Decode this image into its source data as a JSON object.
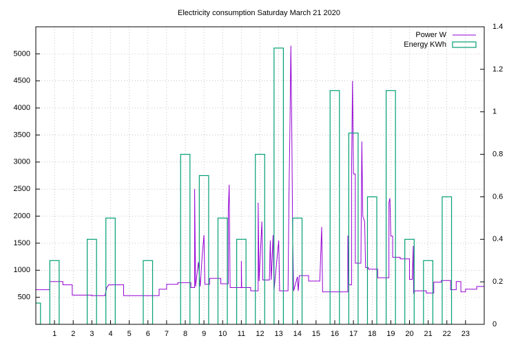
{
  "chart_data": {
    "type": "line",
    "title": "Electricity consumption Saturday March 21 2020",
    "xlim": [
      0,
      24
    ],
    "xticks": [
      1,
      2,
      3,
      4,
      5,
      6,
      7,
      8,
      9,
      10,
      11,
      12,
      13,
      14,
      15,
      16,
      17,
      18,
      19,
      20,
      21,
      22,
      23
    ],
    "ylim": [
      0,
      5500
    ],
    "yticks": [
      500,
      1000,
      1500,
      2000,
      2500,
      3000,
      3500,
      4000,
      4500,
      5000
    ],
    "y2lim": [
      0,
      1.4
    ],
    "y2ticks": [
      0,
      0.2,
      0.4,
      0.6,
      0.8,
      1,
      1.2,
      1.4
    ],
    "grid": true,
    "legend": "top-right",
    "box_width": 0.5,
    "series": [
      {
        "name": "Power W",
        "color": "#9400d3",
        "x": [
          0,
          0.75,
          0.75,
          1.45,
          1.45,
          1.95,
          1.95,
          3.0,
          3.0,
          3.7,
          3.8,
          3.9,
          4.7,
          4.7,
          6.6,
          6.6,
          7.0,
          7.0,
          7.6,
          7.6,
          8.3,
          8.3,
          8.5,
          8.5,
          8.55,
          8.7,
          8.8,
          8.9,
          9.0,
          9.05,
          9.3,
          9.3,
          9.9,
          9.9,
          10.3,
          10.3,
          10.35,
          10.4,
          11.0,
          11.0,
          11.02,
          11.5,
          11.5,
          11.9,
          11.9,
          11.95,
          12.1,
          12.15,
          12.5,
          12.55,
          12.6,
          12.7,
          12.75,
          13.0,
          13.05,
          13.5,
          13.55,
          13.6,
          13.65,
          13.7,
          13.75,
          13.8,
          14.0,
          14.05,
          14.1,
          14.6,
          14.6,
          15.2,
          15.3,
          15.35,
          16.7,
          16.7,
          16.75,
          16.9,
          16.9,
          16.95,
          17.0,
          17.1,
          17.1,
          17.4,
          17.45,
          17.5,
          17.6,
          17.65,
          17.8,
          17.8,
          18.3,
          18.3,
          18.9,
          18.9,
          18.95,
          19.0,
          19.1,
          19.1,
          19.5,
          19.5,
          20.0,
          20.0,
          20.15,
          20.2,
          20.22,
          20.3,
          20.9,
          20.9,
          21.3,
          21.3,
          21.7,
          21.7,
          22.2,
          22.2,
          22.5,
          22.5,
          22.75,
          22.75,
          23.0,
          23.0,
          23.6,
          23.6,
          24.0
        ],
        "values": [
          640,
          640,
          790,
          790,
          730,
          730,
          540,
          540,
          530,
          530,
          680,
          730,
          730,
          530,
          530,
          650,
          650,
          740,
          740,
          770,
          770,
          680,
          680,
          2500,
          700,
          1150,
          700,
          1250,
          1650,
          740,
          740,
          850,
          850,
          750,
          750,
          2100,
          2580,
          680,
          680,
          1170,
          680,
          680,
          620,
          620,
          2250,
          800,
          1900,
          820,
          820,
          1550,
          820,
          1650,
          630,
          1550,
          620,
          620,
          2400,
          3600,
          5150,
          3600,
          1550,
          620,
          880,
          620,
          900,
          900,
          800,
          800,
          1800,
          600,
          600,
          1640,
          730,
          730,
          2850,
          4500,
          2780,
          2780,
          1130,
          1130,
          3380,
          2000,
          1900,
          1050,
          1050,
          1020,
          1020,
          860,
          860,
          2250,
          2330,
          1630,
          1630,
          1240,
          1240,
          1210,
          1210,
          830,
          830,
          1450,
          580,
          620,
          620,
          580,
          580,
          780,
          780,
          810,
          810,
          640,
          640,
          790,
          790,
          600,
          600,
          650,
          650,
          700,
          700
        ]
      },
      {
        "name": "Energy KWh",
        "color": "#009e73",
        "axis": "y2",
        "x": [
          0,
          1,
          2,
          3,
          4,
          5,
          6,
          7,
          8,
          9,
          10,
          11,
          12,
          13,
          14,
          15,
          16,
          17,
          18,
          19,
          20,
          21,
          22,
          23
        ],
        "values": [
          0.1,
          0.3,
          0,
          0.4,
          0.5,
          0,
          0.3,
          0,
          0.8,
          0.7,
          0.5,
          0.4,
          0.8,
          1.3,
          0.5,
          0,
          1.1,
          0.9,
          0.6,
          1.1,
          0.4,
          0.3,
          0.6,
          0
        ]
      }
    ]
  }
}
